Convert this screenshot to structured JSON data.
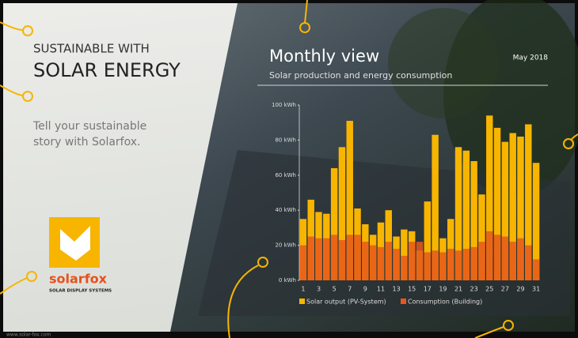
{
  "left_panel": {
    "kicker": "SUSTAINABLE WITH",
    "headline": "SOLAR ENERGY",
    "body": [
      "Tell your sustainable",
      "story with Solarfox."
    ],
    "logo_name": "solarfox",
    "logo_tagline": "SOLAR DISPLAY SYSTEMS"
  },
  "footer_url": "www.solar-fox.com",
  "chart_data": {
    "type": "bar",
    "title": "Monthly view",
    "date": "May 2018",
    "subtitle": "Solar production and energy consumption",
    "categories": [
      1,
      null,
      3,
      null,
      5,
      null,
      7,
      null,
      9,
      null,
      11,
      null,
      13,
      null,
      15,
      null,
      17,
      null,
      19,
      null,
      21,
      null,
      23,
      null,
      25,
      null,
      27,
      null,
      29,
      null,
      31
    ],
    "series": [
      {
        "name": "Solar output (PV-System)",
        "color": "#f7b500",
        "values": [
          35,
          46,
          39,
          38,
          64,
          76,
          91,
          41,
          32,
          26,
          33,
          40,
          25,
          29,
          28,
          17,
          45,
          83,
          24,
          35,
          76,
          74,
          68,
          49,
          94,
          87,
          79,
          84,
          82,
          89,
          67
        ]
      },
      {
        "name": "Consumption (Building)",
        "color": "#e8581a",
        "values": [
          20,
          25,
          24,
          24,
          26,
          23,
          26,
          26,
          22,
          20,
          19,
          22,
          18,
          14,
          22,
          22,
          16,
          17,
          16,
          18,
          17,
          18,
          19,
          22,
          28,
          26,
          25,
          22,
          24,
          20,
          12
        ]
      }
    ],
    "ylim": [
      0,
      100
    ],
    "yticks": [
      {
        "value": 0,
        "label": "0 kWh"
      },
      {
        "value": 20,
        "label": "20 kWh"
      },
      {
        "value": 40,
        "label": "40 kWh"
      },
      {
        "value": 60,
        "label": "60 kWh"
      },
      {
        "value": 80,
        "label": "80 kWh"
      },
      {
        "value": 100,
        "label": "100 kWh"
      }
    ]
  }
}
